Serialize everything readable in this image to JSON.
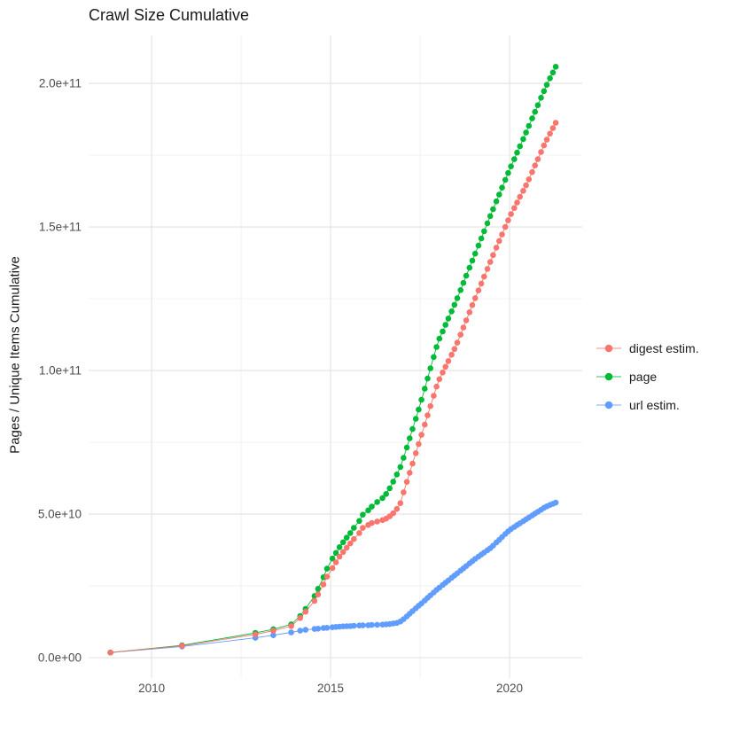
{
  "chart_data": {
    "type": "line",
    "marker": "point",
    "title": "Crawl Size Cumulative",
    "xlabel": "",
    "ylabel": "Pages / Unique Items Cumulative",
    "y_values_unit": "billions (1e9); axis labels use scientific notation",
    "grid": true,
    "legend_position": "right",
    "x_range": [
      2008.24,
      2022.03
    ],
    "y_range": [
      -7.1,
      216.7
    ],
    "x_ticks": [
      {
        "value": 2010,
        "label": "2010"
      },
      {
        "value": 2015,
        "label": "2015"
      },
      {
        "value": 2020,
        "label": "2020"
      }
    ],
    "x_minor_ticks": [
      2012.5,
      2017.5
    ],
    "y_ticks": [
      {
        "value": 0,
        "label": "0.0e+00"
      },
      {
        "value": 50,
        "label": "5.0e+10"
      },
      {
        "value": 100,
        "label": "1.0e+11"
      },
      {
        "value": 150,
        "label": "1.5e+11"
      },
      {
        "value": 200,
        "label": "2.0e+11"
      }
    ],
    "y_minor_ticks": [
      25,
      75,
      125,
      175
    ],
    "x": [
      2008.85,
      2010.85,
      2012.9,
      2013.4,
      2013.9,
      2014.15,
      2014.3,
      2014.55,
      2014.65,
      2014.8,
      2014.9,
      2015.05,
      2015.15,
      2015.25,
      2015.35,
      2015.45,
      2015.55,
      2015.65,
      2015.8,
      2015.9,
      2016.05,
      2016.15,
      2016.3,
      2016.45,
      2016.55,
      2016.65,
      2016.75,
      2016.85,
      2016.95,
      2017.04,
      2017.13,
      2017.21,
      2017.29,
      2017.38,
      2017.46,
      2017.54,
      2017.63,
      2017.71,
      2017.79,
      2017.88,
      2017.96,
      2018.04,
      2018.13,
      2018.21,
      2018.29,
      2018.38,
      2018.46,
      2018.54,
      2018.63,
      2018.71,
      2018.79,
      2018.88,
      2018.96,
      2019.04,
      2019.13,
      2019.21,
      2019.29,
      2019.38,
      2019.46,
      2019.54,
      2019.63,
      2019.71,
      2019.79,
      2019.88,
      2019.96,
      2020.04,
      2020.13,
      2020.21,
      2020.29,
      2020.38,
      2020.46,
      2020.54,
      2020.63,
      2020.71,
      2020.79,
      2020.88,
      2020.96,
      2021.04,
      2021.13,
      2021.21,
      2021.29
    ],
    "series": [
      {
        "name": "digest estim.",
        "color": "#F8766D",
        "values": [
          1.8,
          4.1,
          8.1,
          9.4,
          11.0,
          13.8,
          16.0,
          19.8,
          22.0,
          25.5,
          28.2,
          31.2,
          33.2,
          35.2,
          36.8,
          38.3,
          39.8,
          41.3,
          43.4,
          45.2,
          46.2,
          46.9,
          47.4,
          47.9,
          48.4,
          49.2,
          50.3,
          51.8,
          53.8,
          57.6,
          61.2,
          64.4,
          67.6,
          71.2,
          74.4,
          77.6,
          81.2,
          84.4,
          87.6,
          91.2,
          94.4,
          97.0,
          99.3,
          101.3,
          103.3,
          105.5,
          107.5,
          109.7,
          112.5,
          115.0,
          117.5,
          120.3,
          122.8,
          125.2,
          127.9,
          130.3,
          132.7,
          135.4,
          137.8,
          140.2,
          142.8,
          145.1,
          147.4,
          150.0,
          152.3,
          154.5,
          156.6,
          158.5,
          160.5,
          162.6,
          164.5,
          166.6,
          169.1,
          171.4,
          173.6,
          176.1,
          178.4,
          180.4,
          182.5,
          184.4,
          186.3
        ]
      },
      {
        "name": "page",
        "color": "#00BA38",
        "values": [
          1.8,
          4.3,
          8.6,
          9.9,
          11.6,
          14.5,
          17.0,
          21.5,
          24.0,
          28.0,
          31.0,
          34.5,
          36.5,
          38.5,
          40.2,
          41.8,
          43.4,
          45.2,
          47.6,
          49.8,
          51.3,
          52.6,
          54.2,
          55.6,
          57.0,
          59.0,
          61.3,
          63.8,
          66.4,
          69.6,
          73.2,
          76.4,
          79.6,
          83.2,
          86.4,
          89.8,
          93.7,
          97.2,
          100.8,
          104.7,
          108.2,
          111.1,
          113.6,
          115.9,
          118.1,
          120.6,
          122.9,
          125.2,
          128.0,
          130.5,
          133.0,
          135.8,
          138.3,
          140.7,
          143.5,
          146.0,
          148.5,
          151.3,
          153.8,
          156.2,
          158.9,
          161.3,
          163.7,
          166.4,
          168.8,
          171.1,
          173.6,
          175.9,
          178.1,
          180.6,
          182.9,
          185.2,
          187.8,
          190.1,
          192.4,
          195.0,
          197.3,
          199.5,
          201.8,
          203.8,
          205.8
        ]
      },
      {
        "name": "url estim.",
        "color": "#619CFF",
        "values": [
          1.8,
          3.9,
          6.9,
          7.8,
          8.8,
          9.4,
          9.7,
          10.0,
          10.1,
          10.3,
          10.4,
          10.6,
          10.7,
          10.8,
          10.9,
          10.95,
          11.0,
          11.1,
          11.2,
          11.25,
          11.3,
          11.4,
          11.45,
          11.5,
          11.6,
          11.7,
          11.9,
          12.1,
          12.6,
          13.4,
          14.4,
          15.3,
          16.2,
          17.2,
          18.1,
          18.9,
          19.9,
          20.8,
          21.7,
          22.7,
          23.6,
          24.4,
          25.3,
          26.1,
          26.9,
          27.8,
          28.6,
          29.4,
          30.3,
          31.1,
          31.9,
          32.8,
          33.6,
          34.4,
          35.2,
          35.9,
          36.6,
          37.4,
          38.1,
          39.0,
          40.1,
          41.0,
          42.0,
          43.1,
          44.0,
          44.8,
          45.5,
          46.2,
          46.8,
          47.5,
          48.2,
          48.8,
          49.5,
          50.2,
          50.8,
          51.5,
          52.2,
          52.7,
          53.2,
          53.6,
          54.0
        ]
      }
    ],
    "draw_order": [
      "url estim.",
      "page",
      "digest estim."
    ]
  },
  "legend": {
    "entries": [
      {
        "label": "digest estim.",
        "color": "#F8766D"
      },
      {
        "label": "page",
        "color": "#00BA38"
      },
      {
        "label": "url estim.",
        "color": "#619CFF"
      }
    ]
  },
  "style": {
    "major_grid_color": "#e2e2e2",
    "minor_grid_color": "#f0f0f0",
    "tick_label_color": "#4d4d4d",
    "text_color": "#1a1a1a",
    "background": "#ffffff"
  }
}
